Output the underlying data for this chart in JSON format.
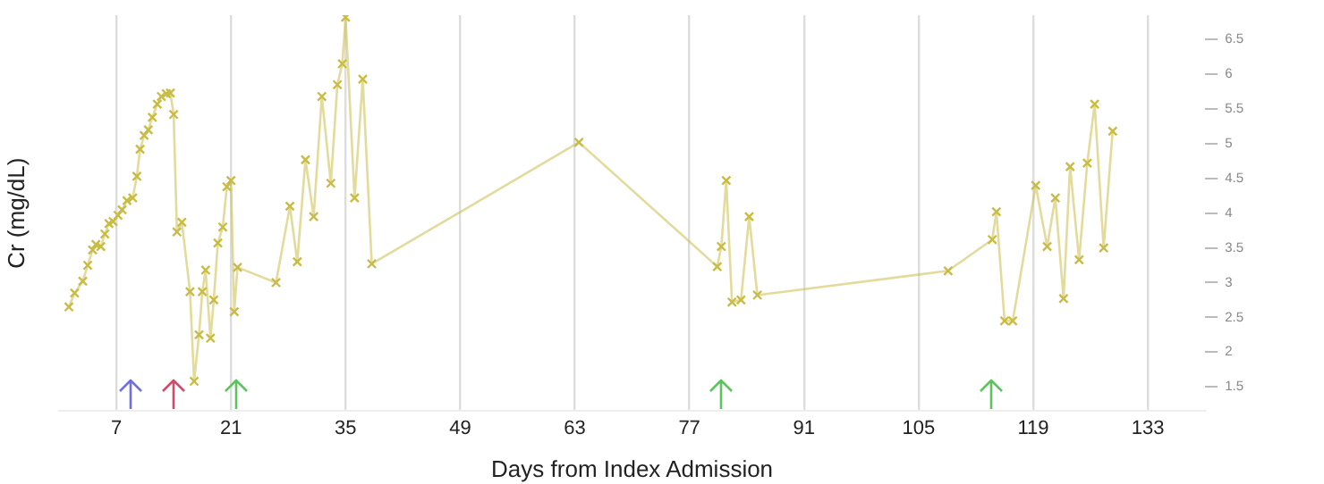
{
  "chart_data": {
    "type": "line",
    "xlabel": "Days from Index Admission",
    "ylabel": "Cr (mg/dL)",
    "xlim": [
      0,
      140
    ],
    "xticks": [
      7,
      21,
      35,
      49,
      63,
      77,
      91,
      105,
      119,
      133
    ],
    "ylim": [
      1.15,
      6.85
    ],
    "yticks": [
      1.5,
      2,
      2.5,
      3,
      3.5,
      4,
      4.5,
      5,
      5.5,
      6,
      6.5
    ],
    "grid": "x",
    "marker": "cross",
    "line_style": "solid",
    "series": [
      {
        "color": "#c9bc45",
        "x": [
          1.2,
          1.9,
          2.9,
          3.5,
          4.1,
          4.5,
          5.1,
          5.6,
          6.1,
          6.6,
          7.2,
          7.7,
          8.3,
          9.0,
          9.5,
          9.9,
          10.4,
          10.9,
          11.4,
          12.0,
          12.5,
          13.1,
          13.6,
          14.0,
          14.4,
          15.0,
          16.0,
          16.5,
          17.1,
          17.5,
          17.9,
          18.5,
          18.9,
          19.4,
          20.0,
          20.5,
          21.0,
          21.4,
          21.8,
          26.5,
          28.2,
          29.1,
          30.1,
          31.1,
          32.1,
          33.2,
          34.0,
          34.6,
          35.0,
          36.1,
          37.1,
          38.2,
          63.5,
          80.4,
          80.9,
          81.5,
          82.2,
          83.3,
          84.3,
          85.3,
          108.6,
          114.0,
          114.5,
          115.5,
          116.5,
          119.3,
          120.7,
          121.7,
          122.7,
          123.5,
          124.6,
          125.6,
          126.5,
          127.6,
          128.7
        ],
        "values": [
          2.65,
          2.85,
          3.02,
          3.25,
          3.47,
          3.55,
          3.52,
          3.7,
          3.85,
          3.88,
          3.97,
          4.05,
          4.18,
          4.22,
          4.53,
          4.92,
          5.12,
          5.2,
          5.38,
          5.57,
          5.68,
          5.72,
          5.73,
          5.42,
          3.73,
          3.87,
          2.87,
          1.58,
          2.25,
          2.87,
          3.18,
          2.2,
          2.75,
          3.57,
          3.8,
          4.38,
          4.47,
          2.58,
          3.22,
          3.0,
          4.1,
          3.3,
          4.77,
          3.95,
          5.68,
          4.43,
          5.85,
          6.15,
          6.82,
          4.22,
          5.93,
          3.27,
          5.02,
          3.23,
          3.52,
          4.47,
          2.72,
          2.75,
          3.95,
          2.82,
          3.17,
          3.62,
          4.02,
          2.45,
          2.45,
          4.4,
          3.52,
          4.22,
          2.77,
          4.67,
          3.33,
          4.72,
          5.57,
          3.5,
          5.18
        ]
      }
    ]
  }
}
